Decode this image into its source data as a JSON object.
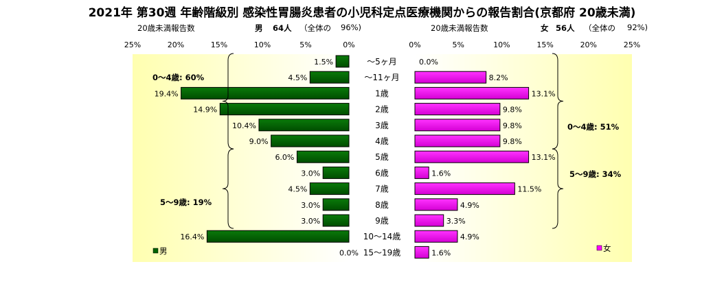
{
  "title": "2021年 第30週 年齢階級別 感染性胃腸炎患者の小児科定点医療機関からの報告割合(京都府 20歳未満)",
  "male_header": {
    "label": "20歳未満報告数",
    "sex": "男",
    "count": "64人",
    "share_open": "（全体の",
    "share_value": "96%)"
  },
  "female_header": {
    "label": "20歳未満報告数",
    "sex": "女",
    "count": "56人",
    "share_open": "（全体の",
    "share_value": "92%)"
  },
  "chart_data": {
    "type": "bar",
    "layout": "population-pyramid",
    "categories": [
      "～5ヶ月",
      "～11ヶ月",
      "1歳",
      "2歳",
      "3歳",
      "4歳",
      "5歳",
      "6歳",
      "7歳",
      "8歳",
      "9歳",
      "10～14歳",
      "15～19歳"
    ],
    "series": [
      {
        "name": "男",
        "color": "#006400",
        "values": [
          1.5,
          4.5,
          19.4,
          14.9,
          10.4,
          9.0,
          6.0,
          3.0,
          4.5,
          3.0,
          3.0,
          16.4,
          0.0
        ],
        "labels": [
          "1.5%",
          "4.5%",
          "19.4%",
          "14.9%",
          "10.4%",
          "9.0%",
          "6.0%",
          "3.0%",
          "4.5%",
          "3.0%",
          "3.0%",
          "16.4%",
          "0.0%"
        ]
      },
      {
        "name": "女",
        "color": "#ff00ff",
        "values": [
          0.0,
          8.2,
          13.1,
          9.8,
          9.8,
          9.8,
          13.1,
          1.6,
          11.5,
          4.9,
          3.3,
          4.9,
          1.6
        ],
        "labels": [
          "0.0%",
          "8.2%",
          "13.1%",
          "9.8%",
          "9.8%",
          "9.8%",
          "13.1%",
          "1.6%",
          "11.5%",
          "4.9%",
          "3.3%",
          "4.9%",
          "1.6%"
        ]
      }
    ],
    "xlim": [
      0,
      25
    ],
    "ticks_left": [
      "25%",
      "20%",
      "15%",
      "10%",
      "5%",
      "0%"
    ],
    "ticks_right": [
      "0%",
      "5%",
      "10%",
      "15%",
      "20%",
      "25%"
    ],
    "tick_values_left": [
      25,
      20,
      15,
      10,
      5,
      0
    ],
    "tick_values_right": [
      0,
      5,
      10,
      15,
      20,
      25
    ],
    "annotations": {
      "male_0_4": "0～4歳: 60%",
      "male_5_9": "5～9歳: 19%",
      "female_0_4": "0～4歳: 51%",
      "female_5_9": "5～9歳: 34%"
    },
    "legend": {
      "male": "男",
      "female": "女",
      "placement": "bottom-corners"
    },
    "background": {
      "plot": "#ffffe0",
      "plot_edge": "#ffff99"
    },
    "grid": false
  }
}
